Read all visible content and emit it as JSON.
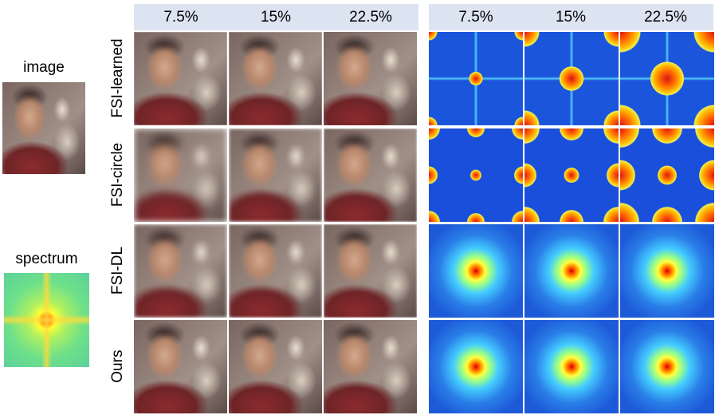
{
  "left_panel": {
    "image_label": "image",
    "spectrum_label": "spectrum"
  },
  "image_columns": [
    "7.5%",
    "15%",
    "22.5%"
  ],
  "spectrum_columns": [
    "7.5%",
    "15%",
    "22.5%"
  ],
  "rows": [
    "FSI-learned",
    "FSI-circle",
    "FSI-DL",
    "Ours"
  ]
}
